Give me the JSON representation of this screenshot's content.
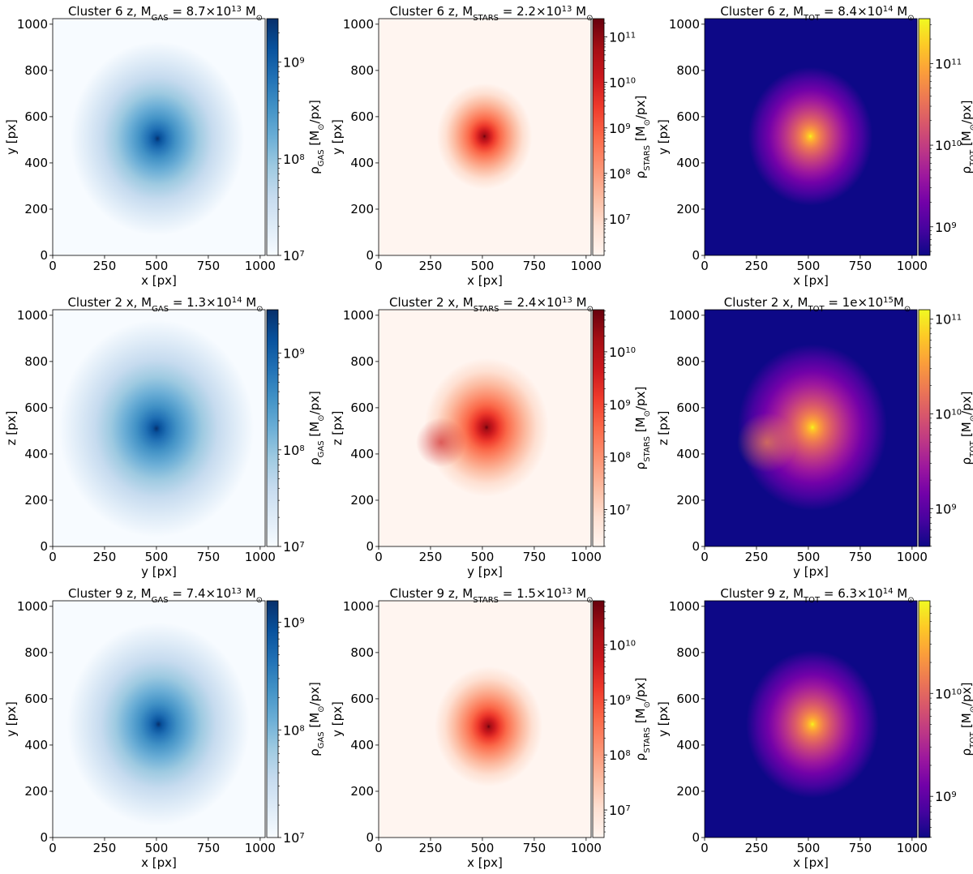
{
  "chart_data": [
    {
      "type": "heatmap",
      "id": "c6-gas",
      "cluster": "Cluster 6 z",
      "title_pre": "Cluster 6 z, M",
      "title_sub": "GAS",
      "title_val": " = 8.7×10",
      "title_exp": "13",
      "title_unit": " M",
      "xlabel": "x [px]",
      "ylabel": "y [px]",
      "xticks": [
        0,
        250,
        500,
        750,
        1000
      ],
      "yticks": [
        0,
        200,
        400,
        600,
        800,
        1000
      ],
      "xlim": [
        0,
        1024
      ],
      "ylim": [
        0,
        1024
      ],
      "colormap": "Blues",
      "cbar_label_pre": "ρ",
      "cbar_label_sub": "GAS",
      "cbar_label_post": " [M",
      "cbar_label_end": "/px]",
      "cbar_ticks": [
        {
          "base": "10",
          "exp": "7"
        },
        {
          "base": "10",
          "exp": "8"
        },
        {
          "base": "10",
          "exp": "9"
        }
      ],
      "cbar_range_log": [
        7,
        9.45
      ],
      "blobs": [
        {
          "x": 505,
          "y": 505,
          "r": 420,
          "i": 1.0
        }
      ]
    },
    {
      "type": "heatmap",
      "id": "c6-stars",
      "cluster": "Cluster 6 z",
      "title_pre": "Cluster 6 z, M",
      "title_sub": "STARS",
      "title_val": " = 2.2×10",
      "title_exp": "13",
      "title_unit": " M",
      "xlabel": "x [px]",
      "ylabel": "y [px]",
      "xticks": [
        0,
        250,
        500,
        750,
        1000
      ],
      "yticks": [
        0,
        200,
        400,
        600,
        800,
        1000
      ],
      "xlim": [
        0,
        1024
      ],
      "ylim": [
        0,
        1024
      ],
      "colormap": "Reds",
      "cbar_label_pre": "ρ",
      "cbar_label_sub": "STARS",
      "cbar_label_post": " [M",
      "cbar_label_end": "/px]",
      "cbar_ticks": [
        {
          "base": "10",
          "exp": "7"
        },
        {
          "base": "10",
          "exp": "8"
        },
        {
          "base": "10",
          "exp": "9"
        },
        {
          "base": "10",
          "exp": "10"
        },
        {
          "base": "10",
          "exp": "11"
        }
      ],
      "cbar_range_log": [
        6.2,
        11.4
      ],
      "blobs": [
        {
          "x": 510,
          "y": 515,
          "r": 230,
          "i": 1.0
        }
      ]
    },
    {
      "type": "heatmap",
      "id": "c6-tot",
      "cluster": "Cluster 6 z",
      "title_pre": "Cluster 6 z, M",
      "title_sub": "TOT",
      "title_val": " = 8.4×10",
      "title_exp": "14",
      "title_unit": " M",
      "xlabel": "x [px]",
      "ylabel": "y [px]",
      "xticks": [
        0,
        250,
        500,
        750,
        1000
      ],
      "yticks": [
        0,
        200,
        400,
        600,
        800,
        1000
      ],
      "xlim": [
        0,
        1024
      ],
      "ylim": [
        0,
        1024
      ],
      "colormap": "plasma",
      "cbar_label_pre": "ρ",
      "cbar_label_sub": "TOT",
      "cbar_label_post": " [M",
      "cbar_label_end": "/px]",
      "cbar_ticks": [
        {
          "base": "10",
          "exp": "9"
        },
        {
          "base": "10",
          "exp": "10"
        },
        {
          "base": "10",
          "exp": "11"
        }
      ],
      "cbar_range_log": [
        8.65,
        11.55
      ],
      "blobs": [
        {
          "x": 510,
          "y": 515,
          "r": 300,
          "i": 1.0
        }
      ]
    },
    {
      "type": "heatmap",
      "id": "c2-gas",
      "cluster": "Cluster 2 x",
      "title_pre": "Cluster 2 x, M",
      "title_sub": "GAS",
      "title_val": " = 1.3×10",
      "title_exp": "14",
      "title_unit": " M",
      "xlabel": "y [px]",
      "ylabel": "z [px]",
      "xticks": [
        0,
        250,
        500,
        750,
        1000
      ],
      "yticks": [
        0,
        200,
        400,
        600,
        800,
        1000
      ],
      "xlim": [
        0,
        1024
      ],
      "ylim": [
        0,
        1024
      ],
      "colormap": "Blues",
      "cbar_label_pre": "ρ",
      "cbar_label_sub": "GAS",
      "cbar_label_post": " [M",
      "cbar_label_end": "/px]",
      "cbar_ticks": [
        {
          "base": "10",
          "exp": "7"
        },
        {
          "base": "10",
          "exp": "8"
        },
        {
          "base": "10",
          "exp": "9"
        }
      ],
      "cbar_range_log": [
        7,
        9.45
      ],
      "blobs": [
        {
          "x": 500,
          "y": 510,
          "r": 470,
          "i": 1.0
        }
      ]
    },
    {
      "type": "heatmap",
      "id": "c2-stars",
      "cluster": "Cluster 2 x",
      "title_pre": "Cluster 2 x, M",
      "title_sub": "STARS",
      "title_val": " = 2.4×10",
      "title_exp": "13",
      "title_unit": " M",
      "xlabel": "y [px]",
      "ylabel": "z [px]",
      "xticks": [
        0,
        250,
        500,
        750,
        1000
      ],
      "yticks": [
        0,
        200,
        400,
        600,
        800,
        1000
      ],
      "xlim": [
        0,
        1024
      ],
      "ylim": [
        0,
        1024
      ],
      "colormap": "Reds",
      "cbar_label_pre": "ρ",
      "cbar_label_sub": "STARS",
      "cbar_label_post": " [M",
      "cbar_label_end": "/px]",
      "cbar_ticks": [
        {
          "base": "10",
          "exp": "7"
        },
        {
          "base": "10",
          "exp": "8"
        },
        {
          "base": "10",
          "exp": "9"
        },
        {
          "base": "10",
          "exp": "10"
        }
      ],
      "cbar_range_log": [
        6.3,
        10.8
      ],
      "blobs": [
        {
          "x": 520,
          "y": 515,
          "r": 300,
          "i": 1.0
        },
        {
          "x": 300,
          "y": 450,
          "r": 200,
          "i": 0.8
        }
      ]
    },
    {
      "type": "heatmap",
      "id": "c2-tot",
      "cluster": "Cluster 2 x",
      "title_pre": "Cluster 2 x, M",
      "title_sub": "TOT",
      "title_val": " = 1e×10",
      "title_exp": "15",
      "title_unit": "M",
      "xlabel": "y [px]",
      "ylabel": "z [px]",
      "xticks": [
        0,
        250,
        500,
        750,
        1000
      ],
      "yticks": [
        0,
        200,
        400,
        600,
        800,
        1000
      ],
      "xlim": [
        0,
        1024
      ],
      "ylim": [
        0,
        1024
      ],
      "colormap": "plasma",
      "cbar_label_pre": "ρ",
      "cbar_label_sub": "TOT",
      "cbar_label_post": " [M",
      "cbar_label_end": "/px]",
      "cbar_ticks": [
        {
          "base": "10",
          "exp": "9"
        },
        {
          "base": "10",
          "exp": "10"
        },
        {
          "base": "10",
          "exp": "11"
        }
      ],
      "cbar_range_log": [
        8.6,
        11.1
      ],
      "blobs": [
        {
          "x": 520,
          "y": 515,
          "r": 360,
          "i": 1.0
        },
        {
          "x": 300,
          "y": 450,
          "r": 240,
          "i": 0.8
        }
      ]
    },
    {
      "type": "heatmap",
      "id": "c9-gas",
      "cluster": "Cluster 9 z",
      "title_pre": "Cluster 9 z, M",
      "title_sub": "GAS",
      "title_val": " = 7.4×10",
      "title_exp": "13",
      "title_unit": " M",
      "xlabel": "x [px]",
      "ylabel": "y [px]",
      "xticks": [
        0,
        250,
        500,
        750,
        1000
      ],
      "yticks": [
        0,
        200,
        400,
        600,
        800,
        1000
      ],
      "xlim": [
        0,
        1024
      ],
      "ylim": [
        0,
        1024
      ],
      "colormap": "Blues",
      "cbar_label_pre": "ρ",
      "cbar_label_sub": "GAS",
      "cbar_label_post": " [M",
      "cbar_label_end": "/px]",
      "cbar_ticks": [
        {
          "base": "10",
          "exp": "7"
        },
        {
          "base": "10",
          "exp": "8"
        },
        {
          "base": "10",
          "exp": "9"
        }
      ],
      "cbar_range_log": [
        7,
        9.2
      ],
      "blobs": [
        {
          "x": 510,
          "y": 490,
          "r": 440,
          "i": 1.0
        }
      ]
    },
    {
      "type": "heatmap",
      "id": "c9-stars",
      "cluster": "Cluster 9 z",
      "title_pre": "Cluster 9 z, M",
      "title_sub": "STARS",
      "title_val": " = 1.5×10",
      "title_exp": "13",
      "title_unit": " M",
      "xlabel": "x [px]",
      "ylabel": "y [px]",
      "xticks": [
        0,
        250,
        500,
        750,
        1000
      ],
      "yticks": [
        0,
        200,
        400,
        600,
        800,
        1000
      ],
      "xlim": [
        0,
        1024
      ],
      "ylim": [
        0,
        1024
      ],
      "colormap": "Reds",
      "cbar_label_pre": "ρ",
      "cbar_label_sub": "STARS",
      "cbar_label_post": " [M",
      "cbar_label_end": "/px]",
      "cbar_ticks": [
        {
          "base": "10",
          "exp": "7"
        },
        {
          "base": "10",
          "exp": "8"
        },
        {
          "base": "10",
          "exp": "9"
        },
        {
          "base": "10",
          "exp": "10"
        }
      ],
      "cbar_range_log": [
        6.5,
        10.8
      ],
      "blobs": [
        {
          "x": 530,
          "y": 480,
          "r": 260,
          "i": 1.0
        }
      ]
    },
    {
      "type": "heatmap",
      "id": "c9-tot",
      "cluster": "Cluster 9 z",
      "title_pre": "Cluster 9 z, M",
      "title_sub": "TOT",
      "title_val": " = 6.3×10",
      "title_exp": "14",
      "title_unit": " M",
      "xlabel": "x [px]",
      "ylabel": "y [px]",
      "xticks": [
        0,
        250,
        500,
        750,
        1000
      ],
      "yticks": [
        0,
        200,
        400,
        600,
        800,
        1000
      ],
      "xlim": [
        0,
        1024
      ],
      "ylim": [
        0,
        1024
      ],
      "colormap": "plasma",
      "cbar_label_pre": "ρ",
      "cbar_label_sub": "TOT",
      "cbar_label_post": " [M",
      "cbar_label_end": "/px]",
      "cbar_ticks": [
        {
          "base": "10",
          "exp": "9"
        },
        {
          "base": "10",
          "exp": "10"
        }
      ],
      "cbar_range_log": [
        8.6,
        10.9
      ],
      "blobs": [
        {
          "x": 520,
          "y": 490,
          "r": 320,
          "i": 1.0
        }
      ]
    }
  ],
  "colormaps": {
    "Blues": [
      "#f7fbff",
      "#deebf7",
      "#c6dbef",
      "#9ecae1",
      "#6baed6",
      "#4292c6",
      "#2171b5",
      "#08519c",
      "#08306b"
    ],
    "Reds": [
      "#fff5f0",
      "#fee0d2",
      "#fcbba1",
      "#fc9272",
      "#fb6a4a",
      "#ef3b2c",
      "#cb181d",
      "#a50f15",
      "#67000d"
    ],
    "plasma": [
      "#0d0887",
      "#46039f",
      "#7201a8",
      "#9c179e",
      "#bd3786",
      "#d8576b",
      "#ed7953",
      "#fb9f3a",
      "#fdca26",
      "#f0f921"
    ]
  },
  "symbols": {
    "sun": "⊙"
  }
}
